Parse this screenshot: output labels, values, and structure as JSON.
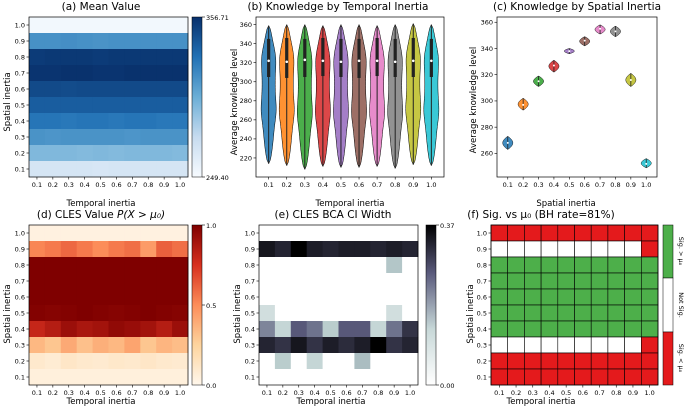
{
  "figure": {
    "panel_a": {
      "title": "(a) Mean Value",
      "xlabel": "Temporal inertia",
      "ylabel": "Spatial inertia",
      "colorbar_max": "356.71",
      "colorbar_min": "249.40",
      "colorscale": "Blues"
    },
    "panel_b": {
      "title": "(b) Knowledge by Temporal Inertia",
      "xlabel": "Temporal inertia",
      "ylabel": "Average knowledge level"
    },
    "panel_c": {
      "title": "(c) Knowledge by Spatial Inertia",
      "xlabel": "Spatial inertia",
      "ylabel": "Average knowledge level"
    },
    "panel_d": {
      "title_prefix": "(d) CLES Value ",
      "title_math": "P(X > μ₀)",
      "xlabel": "Temporal inertia",
      "ylabel": "Spatial inertia",
      "colorbar_ticks": [
        "1.0",
        "0.5",
        "0.0"
      ],
      "colorscale": "OrRd"
    },
    "panel_e": {
      "title": "(e) CLES BCA CI Width",
      "xlabel": "Temporal inertia",
      "ylabel": "Spatial inertia",
      "colorbar_max": "0.37",
      "colorbar_min": "0.00",
      "colorscale": "bone_r"
    },
    "panel_f": {
      "title": "(f) Sig. vs μ₀ (BH rate=81%)",
      "xlabel": "Temporal inertia",
      "ylabel": "Spatial inertia",
      "legend_top": "Sig. > μ₀",
      "legend_mid": "Not Sig.",
      "legend_bot": "Sig. < μ₀",
      "color_greater": "#4daf4a",
      "color_less": "#e41a1c",
      "color_not": "#ffffff"
    }
  },
  "chart_data": [
    {
      "id": "a",
      "type": "heatmap",
      "title": "(a) Mean Value",
      "xlabel": "Temporal inertia",
      "ylabel": "Spatial inertia",
      "x": [
        "0.1",
        "0.2",
        "0.3",
        "0.4",
        "0.5",
        "0.6",
        "0.7",
        "0.8",
        "0.9",
        "1.0"
      ],
      "y": [
        "1.0",
        "0.9",
        "0.8",
        "0.7",
        "0.6",
        "0.5",
        "0.4",
        "0.3",
        "0.2",
        "0.1"
      ],
      "vrange": [
        249.4,
        356.71
      ],
      "values": [
        [
          252,
          252,
          252,
          252,
          252,
          252,
          252,
          252,
          252,
          252
        ],
        [
          316,
          316,
          317,
          316,
          315,
          316,
          316,
          316,
          316,
          316
        ],
        [
          352,
          353,
          353,
          353,
          352,
          353,
          353,
          353,
          353,
          353
        ],
        [
          355,
          355,
          356,
          356,
          355,
          355,
          356,
          356,
          356,
          356
        ],
        [
          346,
          346,
          345,
          346,
          346,
          346,
          346,
          346,
          346,
          346
        ],
        [
          338,
          338,
          338,
          338,
          338,
          338,
          338,
          338,
          338,
          338
        ],
        [
          328,
          328,
          327,
          328,
          328,
          327,
          328,
          328,
          327,
          327
        ],
        [
          315,
          314,
          315,
          315,
          315,
          315,
          314,
          315,
          315,
          315
        ],
        [
          297,
          297,
          297,
          296,
          297,
          296,
          297,
          297,
          297,
          296
        ],
        [
          268,
          268,
          268,
          268,
          267,
          268,
          268,
          268,
          268,
          268
        ]
      ]
    },
    {
      "id": "b",
      "type": "violin",
      "title": "(b) Knowledge by Temporal Inertia",
      "xlabel": "Temporal inertia",
      "ylabel": "Average knowledge level",
      "categories": [
        "0.1",
        "0.2",
        "0.3",
        "0.4",
        "0.5",
        "0.6",
        "0.7",
        "0.8",
        "0.9",
        "1.0"
      ],
      "ylim": [
        200,
        368
      ],
      "yticks": [
        220,
        240,
        260,
        280,
        300,
        320,
        340,
        360
      ],
      "min": [
        214,
        212,
        208,
        211,
        210,
        210,
        211,
        209,
        213,
        212
      ],
      "max": [
        359,
        360,
        360,
        359,
        360,
        360,
        359,
        360,
        361,
        360
      ],
      "q1": [
        305,
        304,
        305,
        306,
        305,
        304,
        306,
        305,
        305,
        305
      ],
      "q3": [
        345,
        346,
        345,
        346,
        345,
        345,
        346,
        345,
        346,
        345
      ],
      "median": [
        322,
        321,
        323,
        322,
        321,
        322,
        322,
        321,
        322,
        322
      ],
      "colors": [
        "#1f77b4",
        "#ff7f0e",
        "#2ca02c",
        "#d62728",
        "#9467bd",
        "#8c564b",
        "#e377c2",
        "#7f7f7f",
        "#bcbd22",
        "#17becf"
      ]
    },
    {
      "id": "c",
      "type": "violin",
      "title": "(c) Knowledge by Spatial Inertia",
      "xlabel": "Spatial inertia",
      "ylabel": "Average knowledge level",
      "categories": [
        "0.1",
        "0.2",
        "0.3",
        "0.4",
        "0.5",
        "0.6",
        "0.7",
        "0.8",
        "0.9",
        "1.0"
      ],
      "ylim": [
        242,
        364
      ],
      "yticks": [
        260,
        280,
        300,
        320,
        340,
        360
      ],
      "median": [
        268,
        297,
        315,
        327,
        338,
        346,
        355,
        353,
        316,
        252
      ],
      "min": [
        263,
        293,
        311,
        322,
        336,
        342,
        351,
        349,
        311,
        249
      ],
      "max": [
        273,
        302,
        319,
        331,
        340,
        349,
        358,
        357,
        321,
        256
      ],
      "colors": [
        "#1f77b4",
        "#ff7f0e",
        "#2ca02c",
        "#d62728",
        "#9467bd",
        "#8c564b",
        "#e377c2",
        "#7f7f7f",
        "#bcbd22",
        "#17becf"
      ]
    },
    {
      "id": "d",
      "type": "heatmap",
      "title": "(d) CLES Value P(X > μ₀)",
      "xlabel": "Temporal inertia",
      "ylabel": "Spatial inertia",
      "x": [
        "0.1",
        "0.2",
        "0.3",
        "0.4",
        "0.5",
        "0.6",
        "0.7",
        "0.8",
        "0.9",
        "1.0"
      ],
      "y": [
        "1.0",
        "0.9",
        "0.8",
        "0.7",
        "0.6",
        "0.5",
        "0.4",
        "0.3",
        "0.2",
        "0.1"
      ],
      "vrange": [
        0.0,
        1.0
      ],
      "values": [
        [
          0.04,
          0.04,
          0.04,
          0.04,
          0.04,
          0.04,
          0.04,
          0.04,
          0.04,
          0.04
        ],
        [
          0.52,
          0.55,
          0.6,
          0.55,
          0.5,
          0.55,
          0.58,
          0.45,
          0.62,
          0.58
        ],
        [
          1.0,
          1.0,
          1.0,
          1.0,
          1.0,
          1.0,
          1.0,
          1.0,
          1.0,
          1.0
        ],
        [
          1.0,
          1.0,
          1.0,
          1.0,
          1.0,
          1.0,
          1.0,
          1.0,
          1.0,
          1.0
        ],
        [
          1.0,
          1.0,
          1.0,
          1.0,
          1.0,
          1.0,
          1.0,
          1.0,
          1.0,
          1.0
        ],
        [
          0.99,
          0.98,
          0.99,
          1.0,
          0.99,
          0.98,
          0.99,
          1.0,
          0.99,
          0.98
        ],
        [
          0.8,
          0.85,
          0.92,
          0.88,
          0.9,
          0.95,
          0.93,
          0.9,
          0.85,
          0.92
        ],
        [
          0.35,
          0.3,
          0.4,
          0.32,
          0.38,
          0.35,
          0.42,
          0.3,
          0.36,
          0.33
        ],
        [
          0.1,
          0.08,
          0.12,
          0.1,
          0.09,
          0.11,
          0.1,
          0.12,
          0.1,
          0.09
        ],
        [
          0.05,
          0.05,
          0.05,
          0.05,
          0.05,
          0.05,
          0.05,
          0.05,
          0.05,
          0.05
        ]
      ]
    },
    {
      "id": "e",
      "type": "heatmap",
      "title": "(e) CLES BCA CI Width",
      "xlabel": "Temporal inertia",
      "ylabel": "Spatial inertia",
      "x": [
        "0.1",
        "0.2",
        "0.3",
        "0.4",
        "0.5",
        "0.6",
        "0.7",
        "0.8",
        "0.9",
        "1.0"
      ],
      "y": [
        "1.0",
        "0.9",
        "0.8",
        "0.7",
        "0.6",
        "0.5",
        "0.4",
        "0.3",
        "0.2",
        "0.1"
      ],
      "vrange": [
        0.0,
        0.37
      ],
      "values": [
        [
          0.0,
          0.0,
          0.0,
          0.0,
          0.0,
          0.0,
          0.0,
          0.0,
          0.0,
          0.0
        ],
        [
          0.34,
          0.32,
          0.37,
          0.33,
          0.32,
          0.33,
          0.33,
          0.32,
          0.33,
          0.32
        ],
        [
          0.0,
          0.0,
          0.0,
          0.0,
          0.0,
          0.0,
          0.0,
          0.0,
          0.13,
          0.0
        ],
        [
          0.0,
          0.0,
          0.0,
          0.0,
          0.0,
          0.0,
          0.0,
          0.0,
          0.0,
          0.0
        ],
        [
          0.0,
          0.0,
          0.0,
          0.0,
          0.0,
          0.0,
          0.0,
          0.0,
          0.0,
          0.0
        ],
        [
          0.08,
          0.0,
          0.0,
          0.0,
          0.0,
          0.0,
          0.0,
          0.0,
          0.08,
          0.0
        ],
        [
          0.2,
          0.1,
          0.25,
          0.22,
          0.12,
          0.25,
          0.25,
          0.1,
          0.22,
          0.3
        ],
        [
          0.32,
          0.3,
          0.34,
          0.3,
          0.33,
          0.31,
          0.33,
          0.37,
          0.3,
          0.32
        ],
        [
          0.0,
          0.12,
          0.0,
          0.1,
          0.0,
          0.0,
          0.14,
          0.0,
          0.0,
          0.0
        ],
        [
          0.0,
          0.0,
          0.0,
          0.0,
          0.0,
          0.0,
          0.0,
          0.0,
          0.0,
          0.0
        ]
      ]
    },
    {
      "id": "f",
      "type": "heatmap",
      "title": "(f) Sig. vs μ₀ (BH rate=81%)",
      "xlabel": "Temporal inertia",
      "ylabel": "Spatial inertia",
      "x": [
        "0.1",
        "0.2",
        "0.3",
        "0.4",
        "0.5",
        "0.6",
        "0.7",
        "0.8",
        "0.9",
        "1.0"
      ],
      "y": [
        "1.0",
        "0.9",
        "0.8",
        "0.7",
        "0.6",
        "0.5",
        "0.4",
        "0.3",
        "0.2",
        "0.1"
      ],
      "legend": [
        "Sig. > μ₀",
        "Not Sig.",
        "Sig. < μ₀"
      ],
      "values": [
        [
          -1,
          -1,
          -1,
          -1,
          -1,
          -1,
          -1,
          -1,
          -1,
          -1
        ],
        [
          0,
          0,
          0,
          0,
          0,
          0,
          0,
          0,
          0,
          -1
        ],
        [
          1,
          1,
          1,
          1,
          1,
          1,
          1,
          1,
          1,
          1
        ],
        [
          1,
          1,
          1,
          1,
          1,
          1,
          1,
          1,
          1,
          1
        ],
        [
          1,
          1,
          1,
          1,
          1,
          1,
          1,
          1,
          1,
          1
        ],
        [
          1,
          1,
          1,
          1,
          1,
          1,
          1,
          1,
          1,
          1
        ],
        [
          1,
          1,
          1,
          1,
          1,
          1,
          1,
          1,
          1,
          1
        ],
        [
          0,
          0,
          0,
          0,
          0,
          0,
          0,
          0,
          0,
          -1
        ],
        [
          -1,
          -1,
          -1,
          -1,
          -1,
          -1,
          -1,
          -1,
          -1,
          -1
        ],
        [
          -1,
          -1,
          -1,
          -1,
          -1,
          -1,
          -1,
          -1,
          -1,
          -1
        ]
      ]
    }
  ]
}
